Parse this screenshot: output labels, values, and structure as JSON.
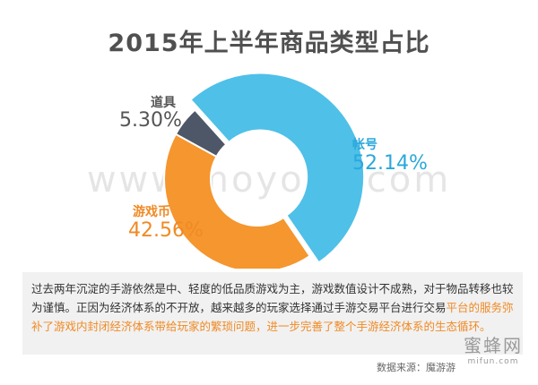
{
  "chart_data": {
    "type": "pie",
    "title": "2015年上半年商品类型占比",
    "categories": [
      "帐号",
      "游戏币",
      "道具"
    ],
    "values": [
      52.14,
      42.56,
      5.3
    ],
    "value_labels": [
      "52.14%",
      "42.56%",
      "5.30%"
    ],
    "colors": [
      "#4fc0e8",
      "#f5962f",
      "#4e5767"
    ],
    "label_colors": [
      "#2aa8dc",
      "#f08a24",
      "#555555"
    ],
    "donut": true
  },
  "watermark": "www.moyoyo.com",
  "description": {
    "part1": "过去两年沉淀的手游依然是中、轻度的低品质游戏为主，游戏数值设计不成熟，对于物品转移也较为谨慎。正因为经济体系的不开放，越来越多的玩家选择通过手游交易平台进行交易",
    "part2": "平台的服务弥补了游戏内封闭经济体系带给玩家的繁琐问题，进一步完善了整个手游经济体系的生态循环。"
  },
  "source": "数据来源：魔游游",
  "logo": {
    "big": "蜜蜂网",
    "small": "mifun.com"
  }
}
